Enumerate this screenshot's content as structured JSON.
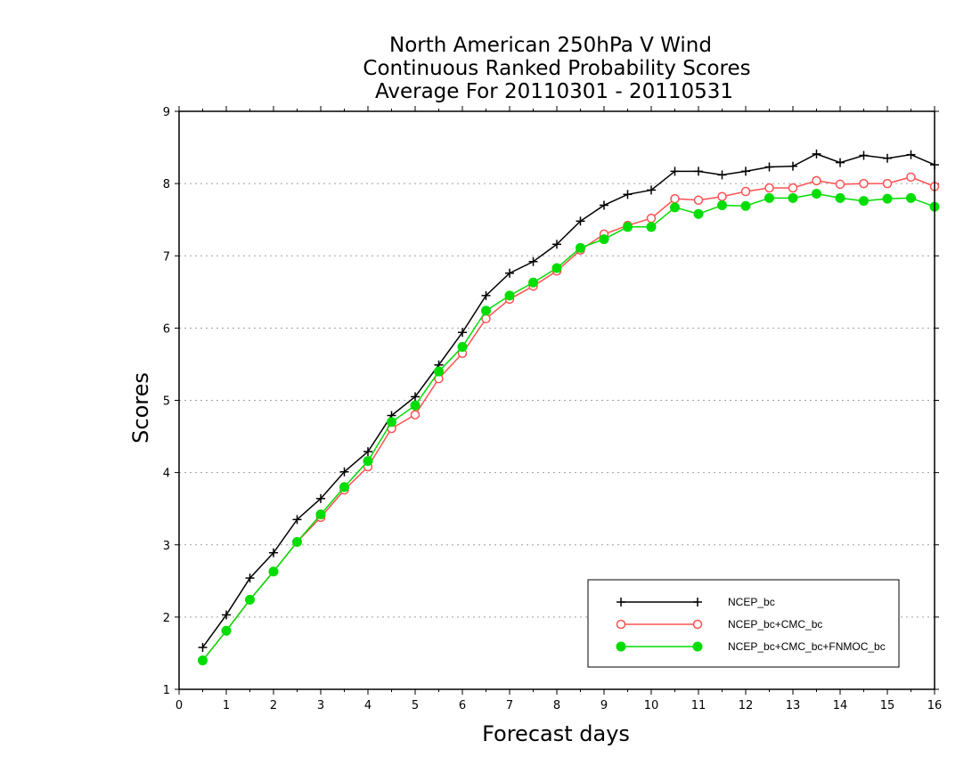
{
  "chart_data": {
    "type": "line",
    "title_lines": [
      "North American 250hPa V Wind",
      "Continuous Ranked Probability Scores",
      "Average For 20110301 - 20110531"
    ],
    "xlabel": "Forecast days",
    "ylabel": "Scores",
    "xlim": [
      0,
      16
    ],
    "ylim": [
      1,
      9
    ],
    "x_ticks": [
      "0",
      "1",
      "2",
      "3",
      "4",
      "5",
      "6",
      "7",
      "8",
      "9",
      "10",
      "11",
      "12",
      "13",
      "14",
      "15",
      "16"
    ],
    "y_ticks": [
      "1",
      "2",
      "3",
      "4",
      "5",
      "6",
      "7",
      "8",
      "9"
    ],
    "grid": "horizontal dotted",
    "legend_position": "bottom-right",
    "x": [
      0.5,
      1,
      1.5,
      2,
      2.5,
      3,
      3.5,
      4,
      4.5,
      5,
      5.5,
      6,
      6.5,
      7,
      7.5,
      8,
      8.5,
      9,
      9.5,
      10,
      10.5,
      11,
      11.5,
      12,
      12.5,
      13,
      13.5,
      14,
      14.5,
      15,
      15.5,
      16
    ],
    "series": [
      {
        "name": "NCEP_bc",
        "color": "#000000",
        "marker": "plus",
        "values": [
          1.58,
          2.03,
          2.54,
          2.89,
          3.35,
          3.64,
          4.01,
          4.29,
          4.79,
          5.05,
          5.49,
          5.94,
          6.45,
          6.76,
          6.92,
          7.16,
          7.48,
          7.7,
          7.85,
          7.91,
          8.17,
          8.17,
          8.12,
          8.17,
          8.23,
          8.24,
          8.41,
          8.29,
          8.39,
          8.35,
          8.4,
          8.26
        ]
      },
      {
        "name": "NCEP_bc+CMC_bc",
        "color": "#ff5050",
        "marker": "open-circle",
        "values": [
          1.4,
          1.81,
          2.24,
          2.63,
          3.04,
          3.38,
          3.76,
          4.08,
          4.61,
          4.8,
          5.3,
          5.65,
          6.13,
          6.4,
          6.58,
          6.79,
          7.08,
          7.3,
          7.42,
          7.52,
          7.79,
          7.77,
          7.82,
          7.89,
          7.94,
          7.94,
          8.04,
          7.99,
          8.0,
          8.0,
          8.09,
          7.96
        ]
      },
      {
        "name": "NCEP_bc+CMC_bc+FNMOC_bc",
        "color": "#00dd00",
        "marker": "filled-circle",
        "values": [
          1.4,
          1.81,
          2.24,
          2.63,
          3.04,
          3.42,
          3.8,
          4.16,
          4.7,
          4.93,
          5.4,
          5.74,
          6.24,
          6.45,
          6.63,
          6.83,
          7.11,
          7.23,
          7.4,
          7.4,
          7.67,
          7.58,
          7.7,
          7.69,
          7.8,
          7.8,
          7.86,
          7.8,
          7.76,
          7.79,
          7.8,
          7.68
        ]
      }
    ]
  }
}
